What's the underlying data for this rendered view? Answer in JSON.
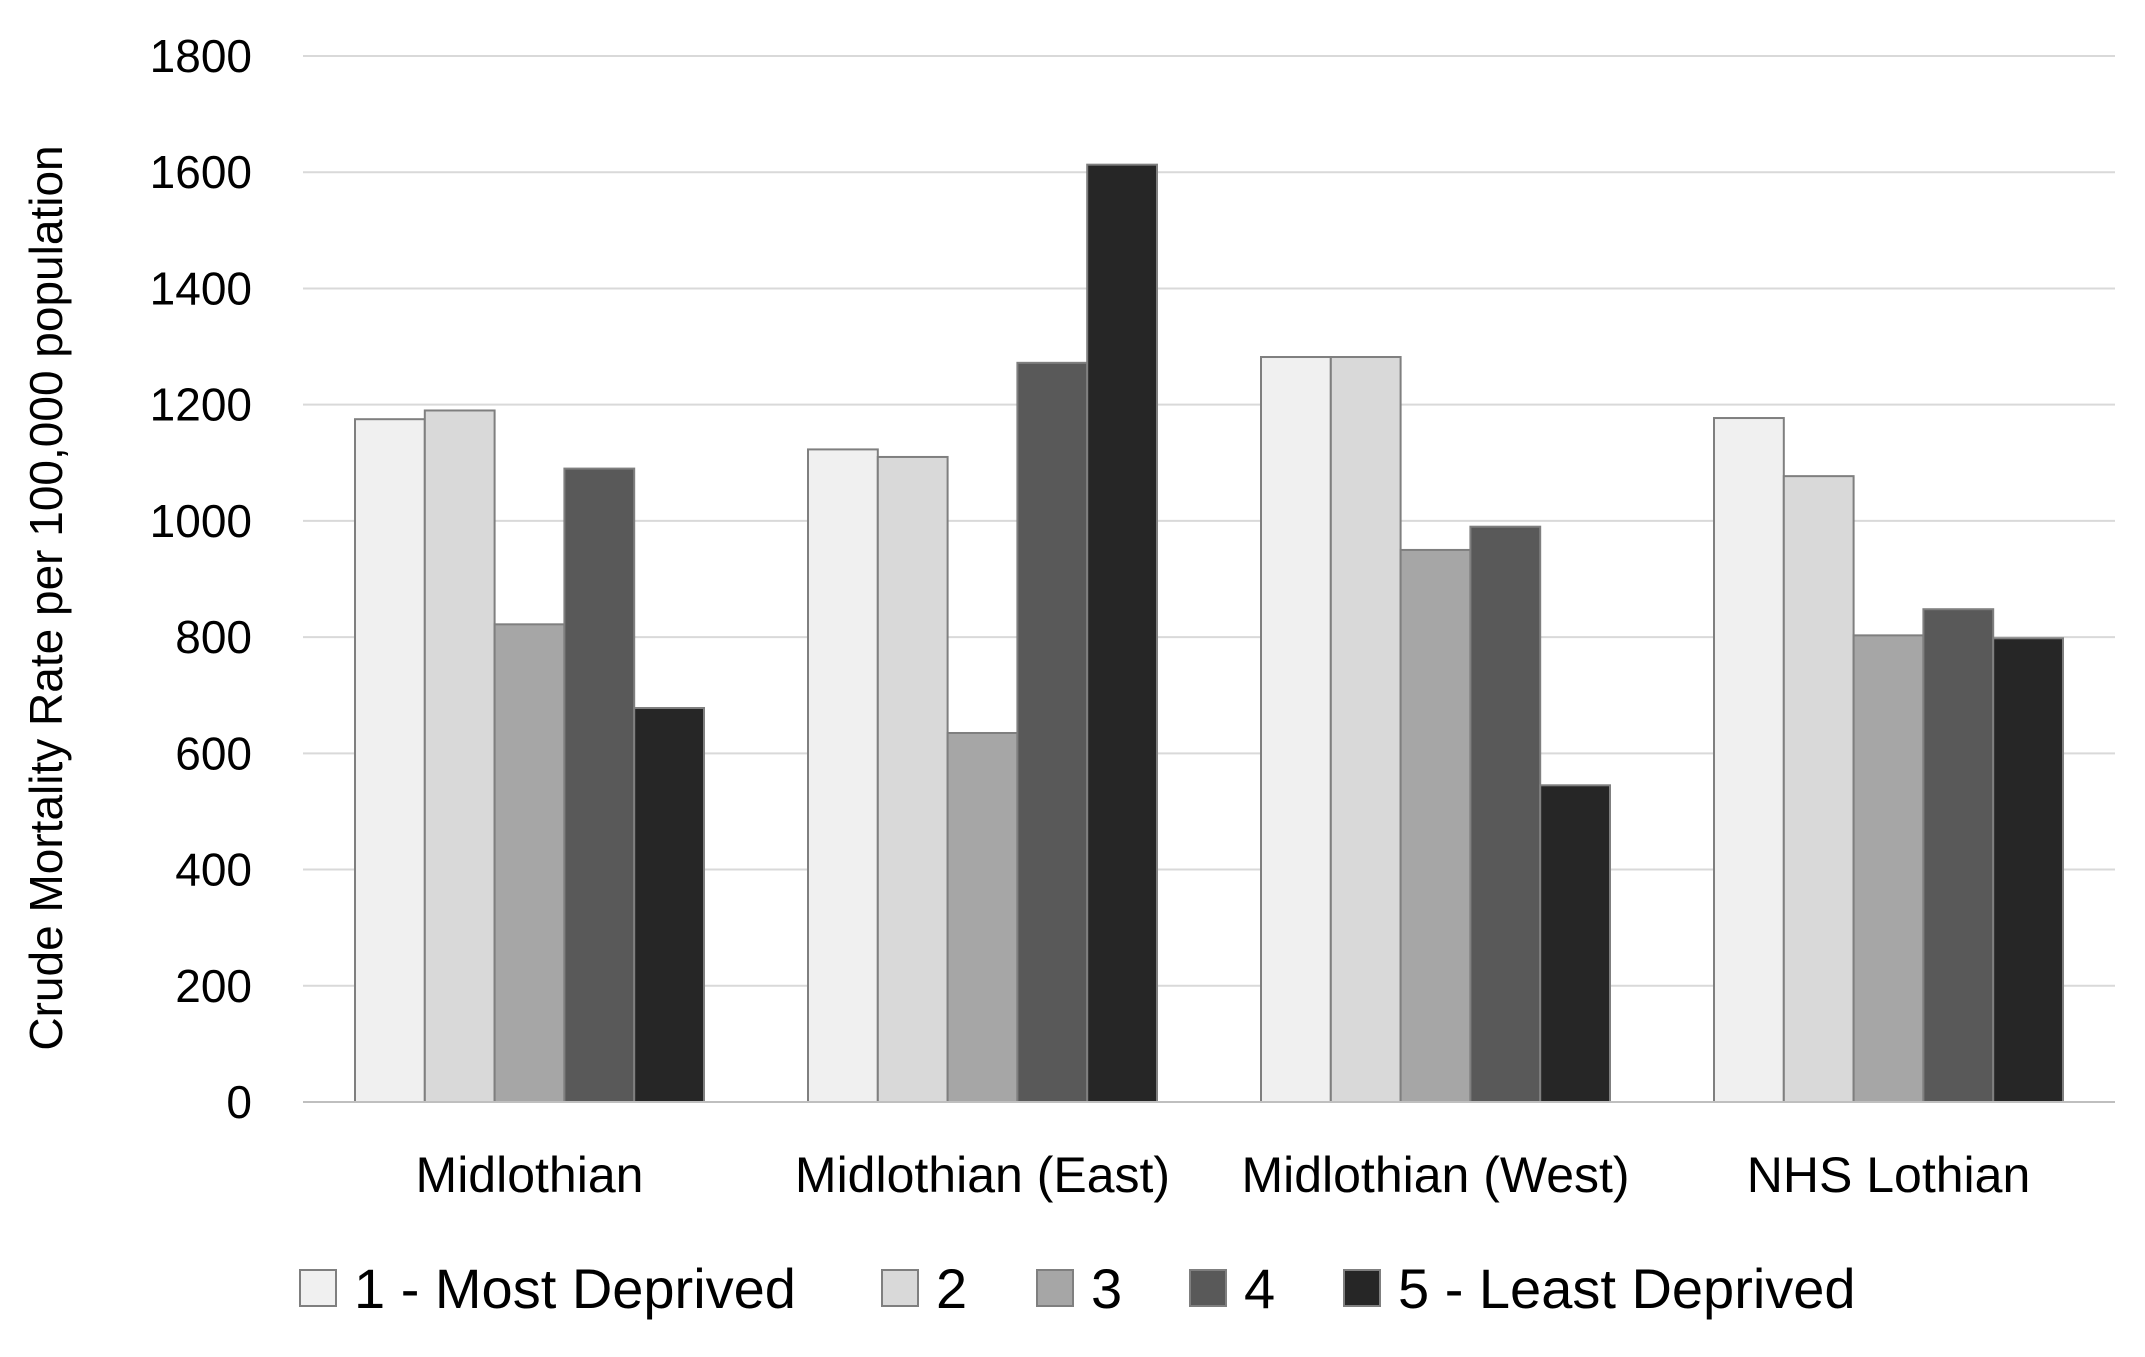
{
  "chart_data": {
    "type": "bar",
    "title": "",
    "xlabel": "",
    "ylabel": "Crude Mortality Rate per 100,000 population",
    "ylim": [
      0,
      1800
    ],
    "yticks": [
      0,
      200,
      400,
      600,
      800,
      1000,
      1200,
      1400,
      1600,
      1800
    ],
    "grid": true,
    "legend_position": "bottom",
    "categories": [
      "Midlothian",
      "Midlothian (East)",
      "Midlothian (West)",
      "NHS Lothian"
    ],
    "series": [
      {
        "name": "1 - Most Deprived",
        "color": "#f0f0f0",
        "values": [
          1175,
          1123,
          1282,
          1177
        ]
      },
      {
        "name": "2",
        "color": "#d9d9d9",
        "values": [
          1190,
          1110,
          1282,
          1077
        ]
      },
      {
        "name": "3",
        "color": "#a6a6a6",
        "values": [
          822,
          635,
          950,
          803
        ]
      },
      {
        "name": "4",
        "color": "#595959",
        "values": [
          1090,
          1272,
          990,
          848
        ]
      },
      {
        "name": "5 - Least Deprived",
        "color": "#262626",
        "values": [
          678,
          1613,
          545,
          798
        ]
      }
    ],
    "colors": {
      "gridline": "#d9d9d9",
      "axis": "#bfbfbf",
      "bar_outline": "#7f7f7f"
    }
  }
}
